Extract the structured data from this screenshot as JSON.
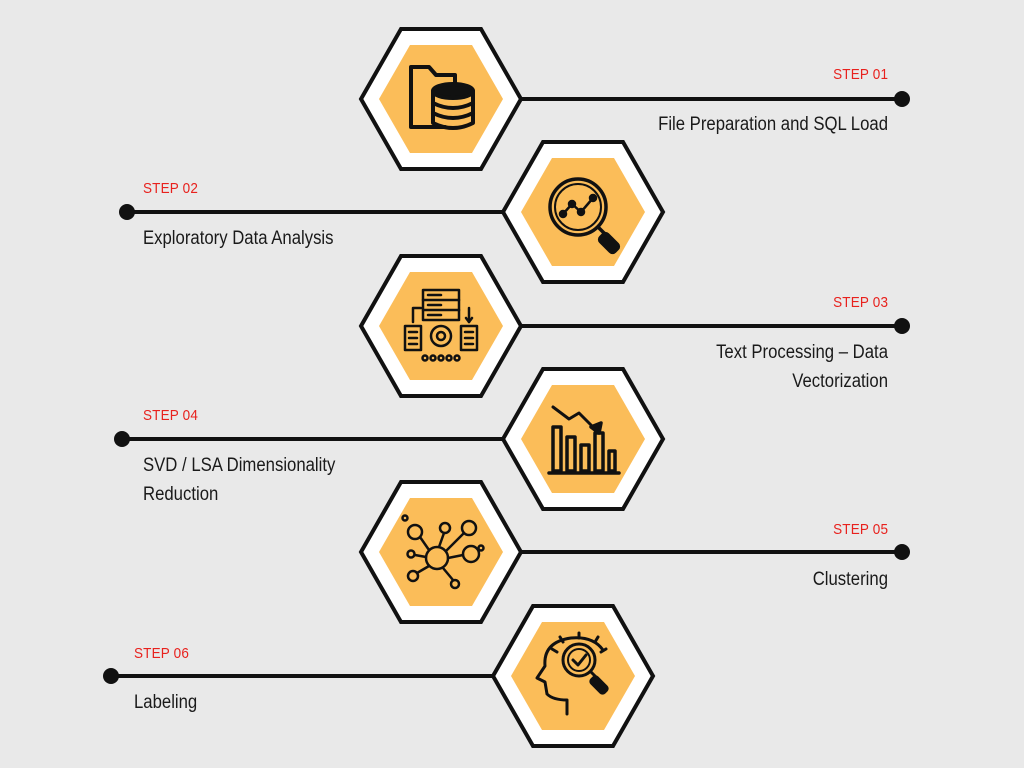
{
  "steps": [
    {
      "label": "STEP 01",
      "title": "File Preparation and SQL Load",
      "icon": "folder-database-icon"
    },
    {
      "label": "STEP 02",
      "title": "Exploratory Data Analysis",
      "icon": "magnifier-chart-icon"
    },
    {
      "label": "STEP 03",
      "title": "Text Processing – Data Vectorization",
      "icon": "data-processing-icon"
    },
    {
      "label": "STEP 04",
      "title": "SVD / LSA Dimensionality Reduction",
      "icon": "declining-bar-chart-icon"
    },
    {
      "label": "STEP 05",
      "title": "Clustering",
      "icon": "cluster-network-icon"
    },
    {
      "label": "STEP 06",
      "title": "Labeling",
      "icon": "head-magnifier-icon"
    }
  ],
  "colors": {
    "accent": "#fbbd59",
    "label": "#e8211d",
    "line": "#111111",
    "background": "#e9e9e9"
  }
}
